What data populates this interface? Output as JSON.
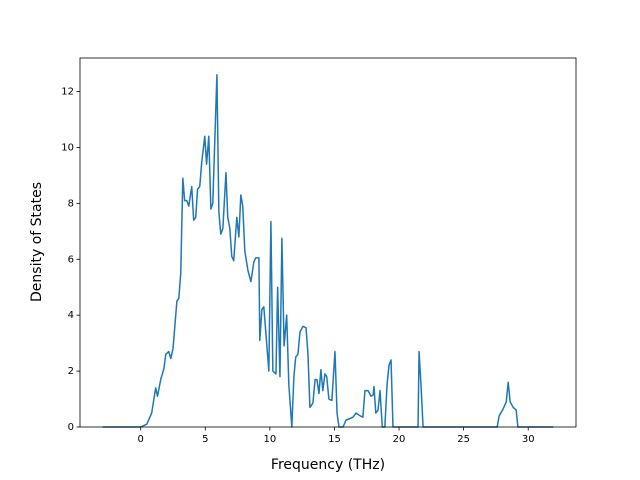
{
  "chart_data": {
    "type": "line",
    "x_label": "Frequency (THz)",
    "y_label": "Density of States",
    "x": [
      -2.95,
      0,
      0.47,
      0.85,
      1.16,
      1.3,
      1.55,
      1.8,
      1.94,
      2.17,
      2.33,
      2.5,
      2.8,
      2.95,
      3.1,
      3.26,
      3.4,
      3.57,
      3.72,
      3.95,
      4.1,
      4.26,
      4.4,
      4.57,
      4.73,
      4.96,
      5.1,
      5.27,
      5.43,
      5.58,
      5.9,
      6.05,
      6.2,
      6.36,
      6.6,
      6.74,
      6.9,
      7.05,
      7.2,
      7.44,
      7.6,
      7.75,
      7.9,
      8.06,
      8.3,
      8.53,
      8.76,
      8.9,
      9.15,
      9.22,
      9.38,
      9.53,
      9.7,
      9.92,
      10.08,
      10.23,
      10.47,
      10.6,
      10.78,
      10.93,
      11.1,
      11.3,
      11.47,
      11.7,
      11.86,
      12.0,
      12.17,
      12.33,
      12.56,
      12.8,
      12.95,
      13.1,
      13.33,
      13.5,
      13.64,
      13.8,
      13.95,
      14.1,
      14.26,
      14.4,
      14.57,
      14.8,
      15.04,
      15.2,
      15.35,
      15.66,
      15.9,
      16.2,
      16.43,
      16.67,
      16.98,
      17.2,
      17.36,
      17.6,
      17.83,
      18.0,
      18.06,
      18.2,
      18.37,
      18.53,
      18.7,
      18.9,
      19.07,
      19.22,
      19.38,
      19.53,
      21.47,
      21.55,
      21.7,
      21.86,
      27.6,
      27.75,
      28.06,
      28.3,
      28.45,
      28.6,
      28.84,
      29.07,
      29.2,
      31.94
    ],
    "series": [
      {
        "color": "#1f77b4",
        "values": [
          0,
          0,
          0.1,
          0.5,
          1.4,
          1.1,
          1.7,
          2.1,
          2.6,
          2.7,
          2.45,
          2.8,
          4.5,
          4.6,
          5.5,
          8.9,
          8.1,
          8.1,
          7.9,
          8.6,
          7.4,
          7.5,
          8.5,
          8.6,
          9.5,
          10.4,
          9.4,
          10.4,
          7.8,
          8.0,
          12.6,
          7.7,
          6.9,
          7.1,
          9.1,
          7.5,
          7.1,
          6.1,
          5.95,
          7.5,
          6.8,
          8.3,
          7.9,
          6.3,
          5.6,
          5.2,
          5.9,
          6.05,
          6.05,
          3.1,
          4.2,
          4.3,
          3.3,
          2.0,
          7.35,
          2.0,
          1.9,
          5.0,
          1.8,
          6.75,
          2.9,
          4.0,
          1.5,
          0,
          1.8,
          2.5,
          2.6,
          3.4,
          3.6,
          3.55,
          2.6,
          0.7,
          0.85,
          1.7,
          1.7,
          1.2,
          2.05,
          1.3,
          1.9,
          1.8,
          1.0,
          0.95,
          2.7,
          0.5,
          0,
          0,
          0.25,
          0.3,
          0.35,
          0.5,
          0.4,
          0.35,
          1.3,
          1.3,
          1.1,
          1.15,
          1.45,
          0.5,
          0.6,
          1.3,
          0,
          0,
          1.5,
          2.2,
          2.4,
          0,
          0,
          2.7,
          1.5,
          0,
          0,
          0.4,
          0.65,
          0.9,
          1.6,
          0.9,
          0.7,
          0.6,
          0,
          0
        ]
      }
    ],
    "xlim": [
      -4.7,
      33.7
    ],
    "ylim": [
      0,
      13.2
    ],
    "xticks": [
      0,
      5,
      10,
      15,
      20,
      25,
      30
    ],
    "yticks": [
      0,
      2,
      4,
      6,
      8,
      10,
      12
    ]
  }
}
